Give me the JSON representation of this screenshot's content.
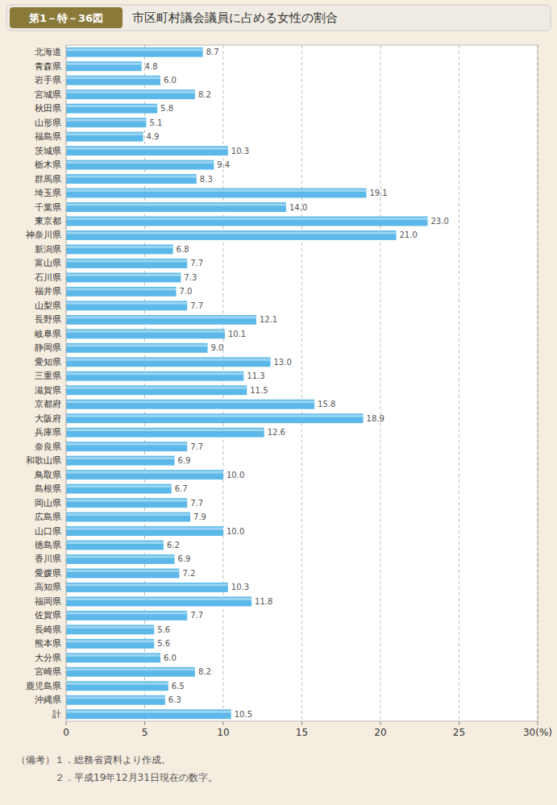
{
  "chart_data": {
    "type": "bar",
    "orientation": "horizontal",
    "title": "市区町村議会議員に占める女性の割合",
    "subtitle": "第1－特－36図",
    "annotations": [
      "（備考）１．総務省資料より作成。",
      "　　　　２．平成19年12月31日現在の数字。"
    ],
    "categories": [
      "北海道",
      "青森県",
      "岩手県",
      "宮城県",
      "秋田県",
      "山形県",
      "福島県",
      "茨城県",
      "栃木県",
      "群馬県",
      "埼玉県",
      "千葉県",
      "東京都",
      "神奈川県",
      "新潟県",
      "富山県",
      "石川県",
      "福井県",
      "山梨県",
      "長野県",
      "岐阜県",
      "静岡県",
      "愛知県",
      "三重県",
      "滋賀県",
      "京都府",
      "大阪府",
      "兵庫県",
      "奈良県",
      "和歌山県",
      "鳥取県",
      "島根県",
      "岡山県",
      "広島県",
      "山口県",
      "徳島県",
      "香川県",
      "愛媛県",
      "高知県",
      "福岡県",
      "佐賀県",
      "長崎県",
      "熊本県",
      "大分県",
      "宮崎県",
      "鹿児島県",
      "沖縄県",
      "計"
    ],
    "values": [
      8.7,
      4.8,
      6.0,
      8.2,
      5.8,
      5.1,
      4.9,
      10.3,
      9.4,
      8.3,
      19.1,
      14.0,
      23.0,
      21.0,
      6.8,
      7.7,
      7.3,
      7.0,
      7.7,
      12.1,
      10.1,
      9.0,
      13.0,
      11.3,
      11.5,
      15.8,
      18.9,
      12.6,
      7.7,
      6.9,
      10.0,
      6.7,
      7.7,
      7.9,
      10.0,
      6.2,
      6.9,
      7.2,
      10.3,
      11.8,
      7.7,
      5.6,
      5.6,
      6.0,
      8.2,
      6.5,
      6.3,
      10.5
    ],
    "value_labels": [
      "8.7",
      "4.8",
      "6.0",
      "8.2",
      "5.8",
      "5.1",
      "4.9",
      "10.3",
      "9.4",
      "8.3",
      "19.1",
      "14.0",
      "23.0",
      "21.0",
      "6.8",
      "7.7",
      "7.3",
      "7.0",
      "7.7",
      "12.1",
      "10.1",
      "9.0",
      "13.0",
      "11.3",
      "11.5",
      "15.8",
      "18.9",
      "12.6",
      "7.7",
      "6.9",
      "10.0",
      "6.7",
      "7.7",
      "7.9",
      "10.0",
      "6.2",
      "6.9",
      "7.2",
      "10.3",
      "11.8",
      "7.7",
      "5.6",
      "5.6",
      "6.0",
      "8.2",
      "6.5",
      "6.3",
      "10.5"
    ],
    "color": "#5bb8e8",
    "xlim": [
      0,
      30
    ],
    "xticks": [
      0,
      5,
      10,
      15,
      20,
      25,
      {
        "value": 30,
        "label": "30(%)"
      }
    ],
    "grid": true,
    "data_labels": true
  }
}
